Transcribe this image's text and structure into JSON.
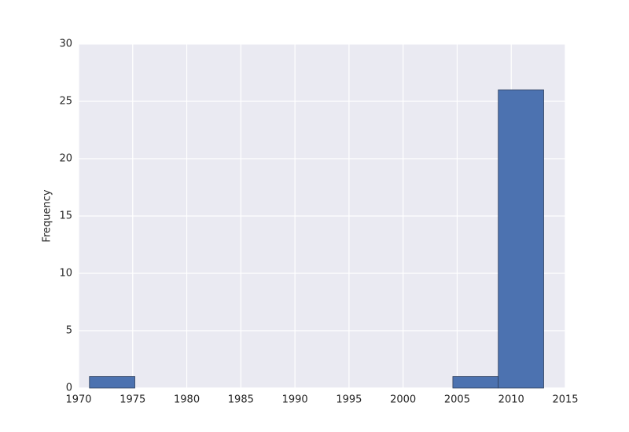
{
  "chart_data": {
    "type": "histogram",
    "y_label": "Frequency",
    "bins": [
      1971,
      1975.2,
      1979.4,
      1983.6,
      1987.8,
      1992,
      1996.2,
      2000.4,
      2004.6,
      2008.8,
      2013
    ],
    "values": [
      1,
      0,
      0,
      0,
      0,
      0,
      0,
      0,
      1,
      26
    ],
    "color": "#4c72b0",
    "xlim": [
      1970,
      2015
    ],
    "xticks": [
      1970,
      1975,
      1980,
      1985,
      1990,
      1995,
      2000,
      2005,
      2010,
      2015
    ],
    "ylim": [
      0,
      30
    ],
    "yticks": [
      0,
      5,
      10,
      15,
      20,
      25,
      30
    ],
    "grid": true
  }
}
